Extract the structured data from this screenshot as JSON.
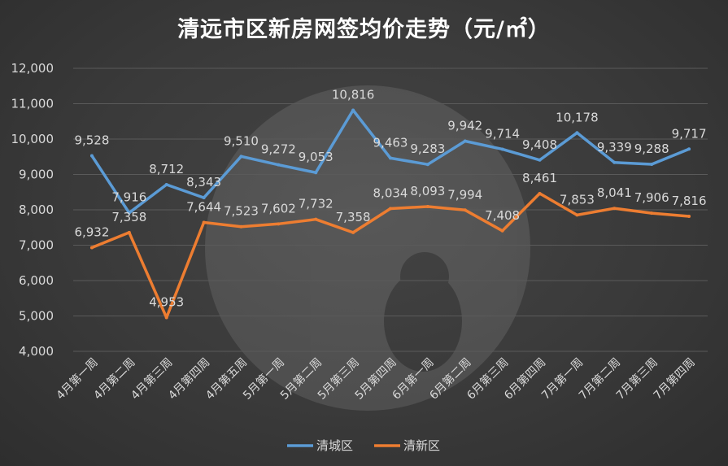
{
  "chart_data": {
    "type": "line",
    "title": "清远市区新房网签均价走势（元/㎡）",
    "categories": [
      "4月第一周",
      "4月第二周",
      "4月第三周",
      "4月第四周",
      "4月第五周",
      "5月第一周",
      "5月第二周",
      "5月第三周",
      "5月第四周",
      "6月第一周",
      "6月第二周",
      "6月第三周",
      "6月第四周",
      "7月第一周",
      "7月第二周",
      "7月第三周",
      "7月第四周"
    ],
    "ylim": [
      4000,
      12000
    ],
    "yticks": [
      4000,
      5000,
      6000,
      7000,
      8000,
      9000,
      10000,
      11000,
      12000
    ],
    "ytick_labels": [
      "4,000",
      "5,000",
      "6,000",
      "7,000",
      "8,000",
      "9,000",
      "10,000",
      "11,000",
      "12,000"
    ],
    "grid": true,
    "legend_position": "bottom",
    "series": [
      {
        "name": "清城区",
        "color": "#5b9bd5",
        "values": [
          9528,
          7916,
          8712,
          8343,
          9510,
          9272,
          9053,
          10816,
          9463,
          9283,
          9942,
          9714,
          9408,
          10178,
          9339,
          9288,
          9717
        ],
        "labels": [
          "9,528",
          "7,916",
          "8,712",
          "8,343",
          "9,510",
          "9,272",
          "9,053",
          "10,816",
          "9,463",
          "9,283",
          "9,942",
          "9,714",
          "9,408",
          "10,178",
          "9,339",
          "9,288",
          "9,717"
        ]
      },
      {
        "name": "清新区",
        "color": "#ed7d31",
        "values": [
          6932,
          7358,
          4953,
          7644,
          7523,
          7602,
          7732,
          7358,
          8034,
          8093,
          7994,
          7408,
          8461,
          7853,
          8041,
          7906,
          7816
        ],
        "labels": [
          "6,932",
          "7,358",
          "4,953",
          "7,644",
          "7,523",
          "7,602",
          "7,732",
          "7,358",
          "8,034",
          "8,093",
          "7,994",
          "7,408",
          "8,461",
          "7,853",
          "8,041",
          "7,906",
          "7,816"
        ]
      }
    ]
  }
}
